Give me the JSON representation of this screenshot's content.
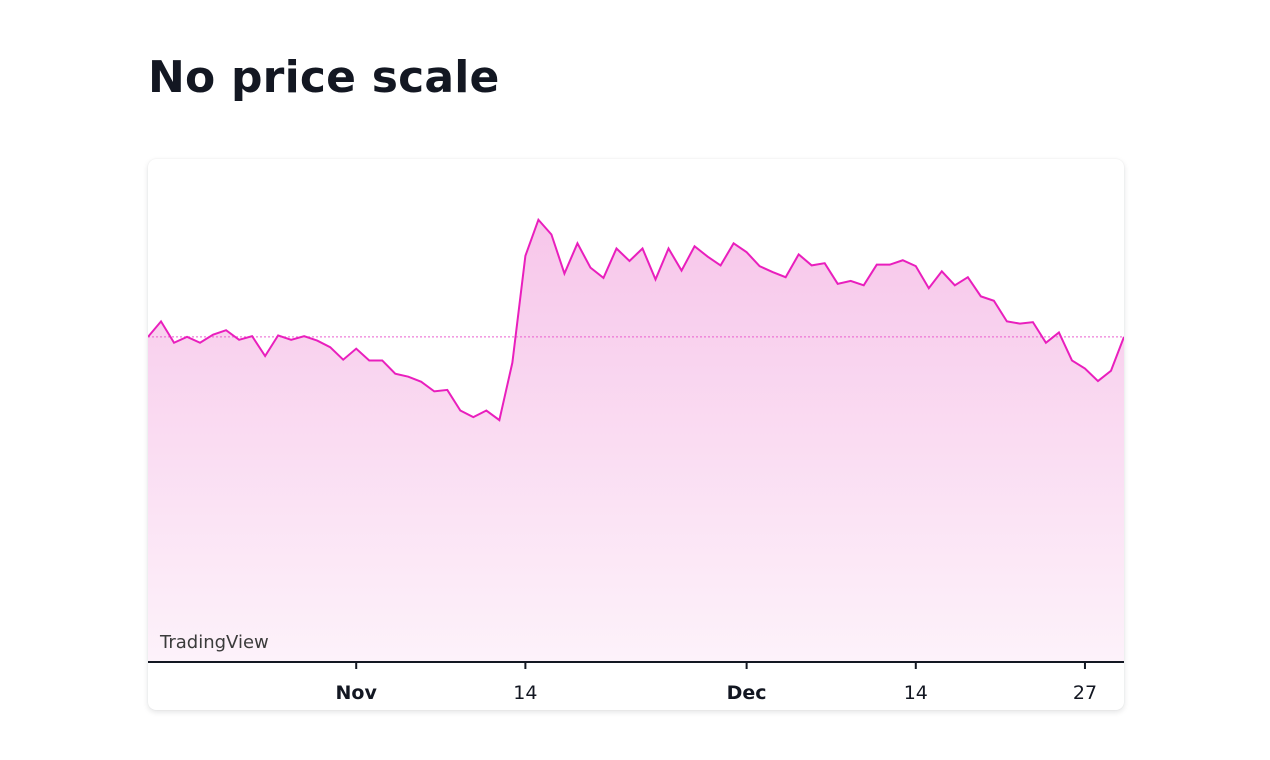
{
  "page": {
    "title": "No price scale"
  },
  "chart": {
    "watermark": "TradingView",
    "colors": {
      "line": "#e91fbd",
      "area_top": "#f7c6ea",
      "area_bottom": "#fdf2fa",
      "baseline": "#e95fd0",
      "axis": "#131722",
      "text": "#131722"
    }
  },
  "chart_data": {
    "type": "area",
    "title": "No price scale",
    "xlabel": "",
    "ylabel": "",
    "price_scale_visible": false,
    "grid": false,
    "baseline_value": 50,
    "ylim": [
      6,
      66
    ],
    "x_ticks": [
      {
        "label": "Nov",
        "index": 16,
        "major": true
      },
      {
        "label": "14",
        "index": 29,
        "major": false
      },
      {
        "label": "Dec",
        "index": 46,
        "major": true
      },
      {
        "label": "14",
        "index": 59,
        "major": false
      },
      {
        "label": "27",
        "index": 72,
        "major": false
      }
    ],
    "values": [
      50.0,
      52.1,
      49.2,
      50.0,
      49.2,
      50.3,
      50.9,
      49.6,
      50.1,
      47.4,
      50.2,
      49.6,
      50.1,
      49.5,
      48.6,
      46.9,
      48.4,
      46.8,
      46.8,
      45.0,
      44.6,
      43.9,
      42.6,
      42.8,
      40.0,
      39.1,
      40.0,
      38.7,
      46.5,
      61.0,
      65.9,
      63.9,
      58.6,
      62.7,
      59.4,
      58.0,
      62.0,
      60.3,
      62.0,
      57.8,
      62.0,
      59.0,
      62.3,
      60.9,
      59.7,
      62.7,
      61.5,
      59.6,
      58.8,
      58.1,
      61.2,
      59.7,
      60.0,
      57.2,
      57.6,
      57.0,
      59.8,
      59.8,
      60.4,
      59.6,
      56.6,
      58.9,
      57.0,
      58.1,
      55.5,
      54.9,
      52.1,
      51.8,
      52.0,
      49.2,
      50.6,
      46.8,
      45.7,
      44.0,
      45.4,
      50.0
    ]
  }
}
